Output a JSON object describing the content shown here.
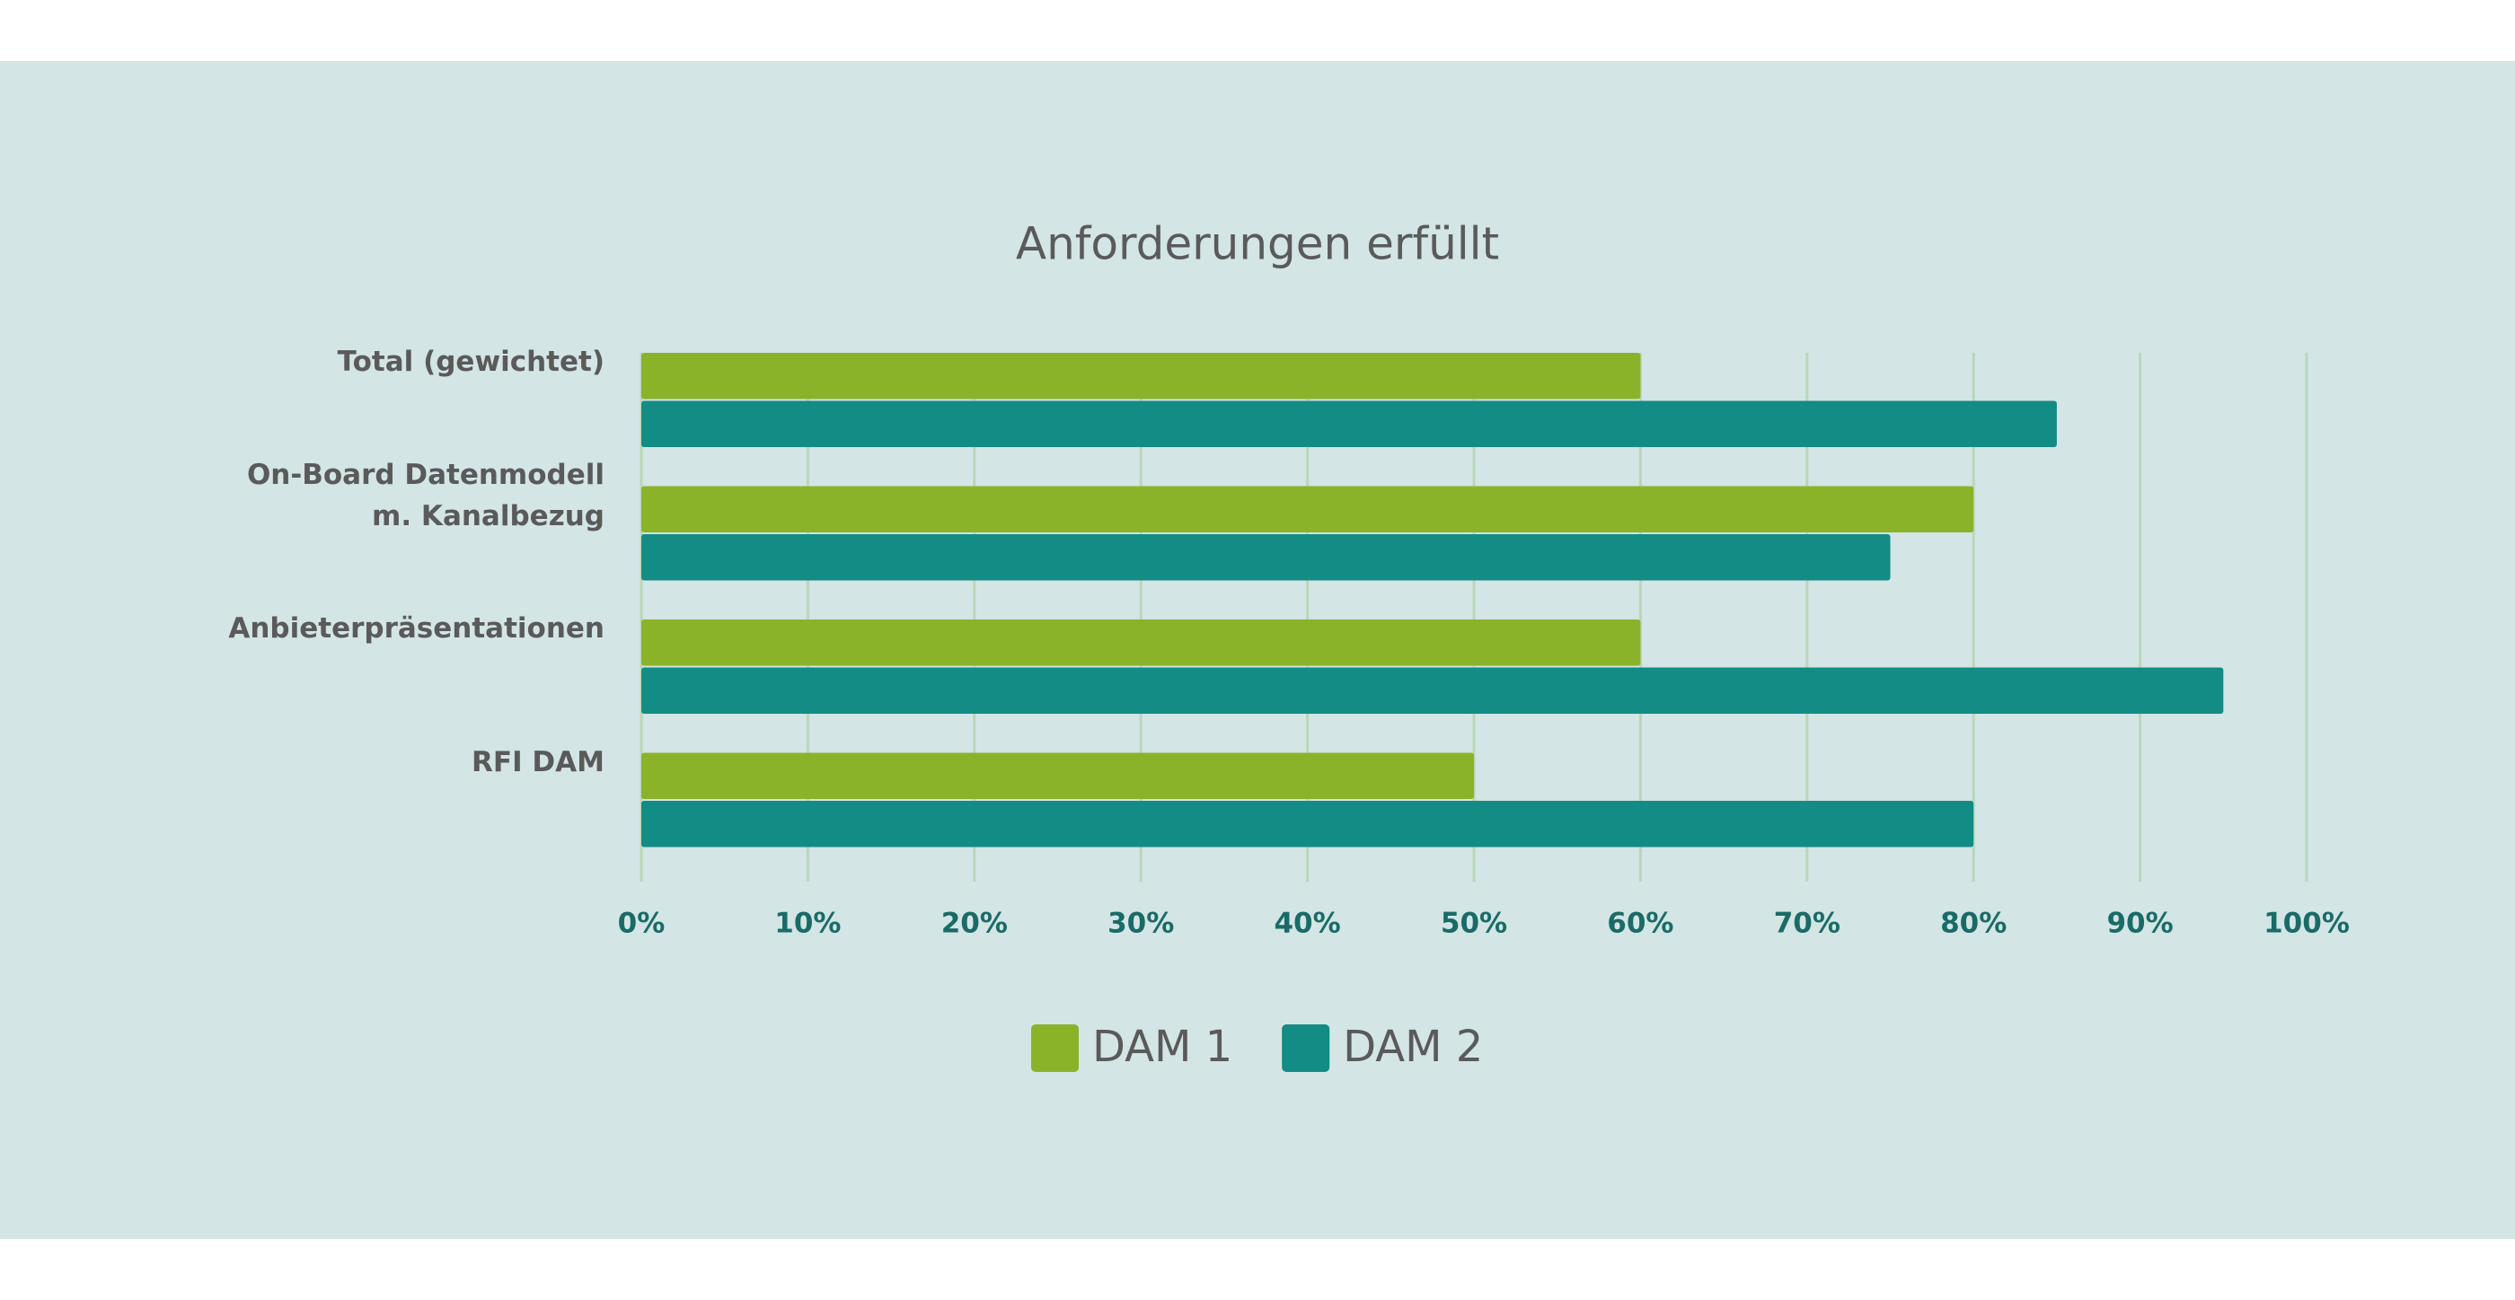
{
  "chart_data": {
    "type": "bar",
    "orientation": "horizontal",
    "title": "Anforderungen erfüllt",
    "categories": [
      "Total  (gewichtet)",
      "On-Board Datenmodell\nm. Kanalbezug",
      "Anbieterpräsentationen",
      "RFI DAM"
    ],
    "series": [
      {
        "name": "DAM 1",
        "color": "#8ab32a",
        "values": [
          60,
          80,
          60,
          50
        ]
      },
      {
        "name": "DAM 2",
        "color": "#128c84",
        "values": [
          85,
          75,
          95,
          80
        ]
      }
    ],
    "xlim": [
      0,
      100
    ],
    "xticks": [
      {
        "value": 0,
        "label": "0%"
      },
      {
        "value": 10,
        "label": "10%"
      },
      {
        "value": 20,
        "label": "20%"
      },
      {
        "value": 30,
        "label": "30%"
      },
      {
        "value": 40,
        "label": "40%"
      },
      {
        "value": 50,
        "label": "50%"
      },
      {
        "value": 60,
        "label": "60%"
      },
      {
        "value": 70,
        "label": "70%"
      },
      {
        "value": 80,
        "label": "80%"
      },
      {
        "value": 90,
        "label": "90%"
      },
      {
        "value": 100,
        "label": "100%"
      }
    ],
    "grid": true,
    "legend": "bottom"
  }
}
